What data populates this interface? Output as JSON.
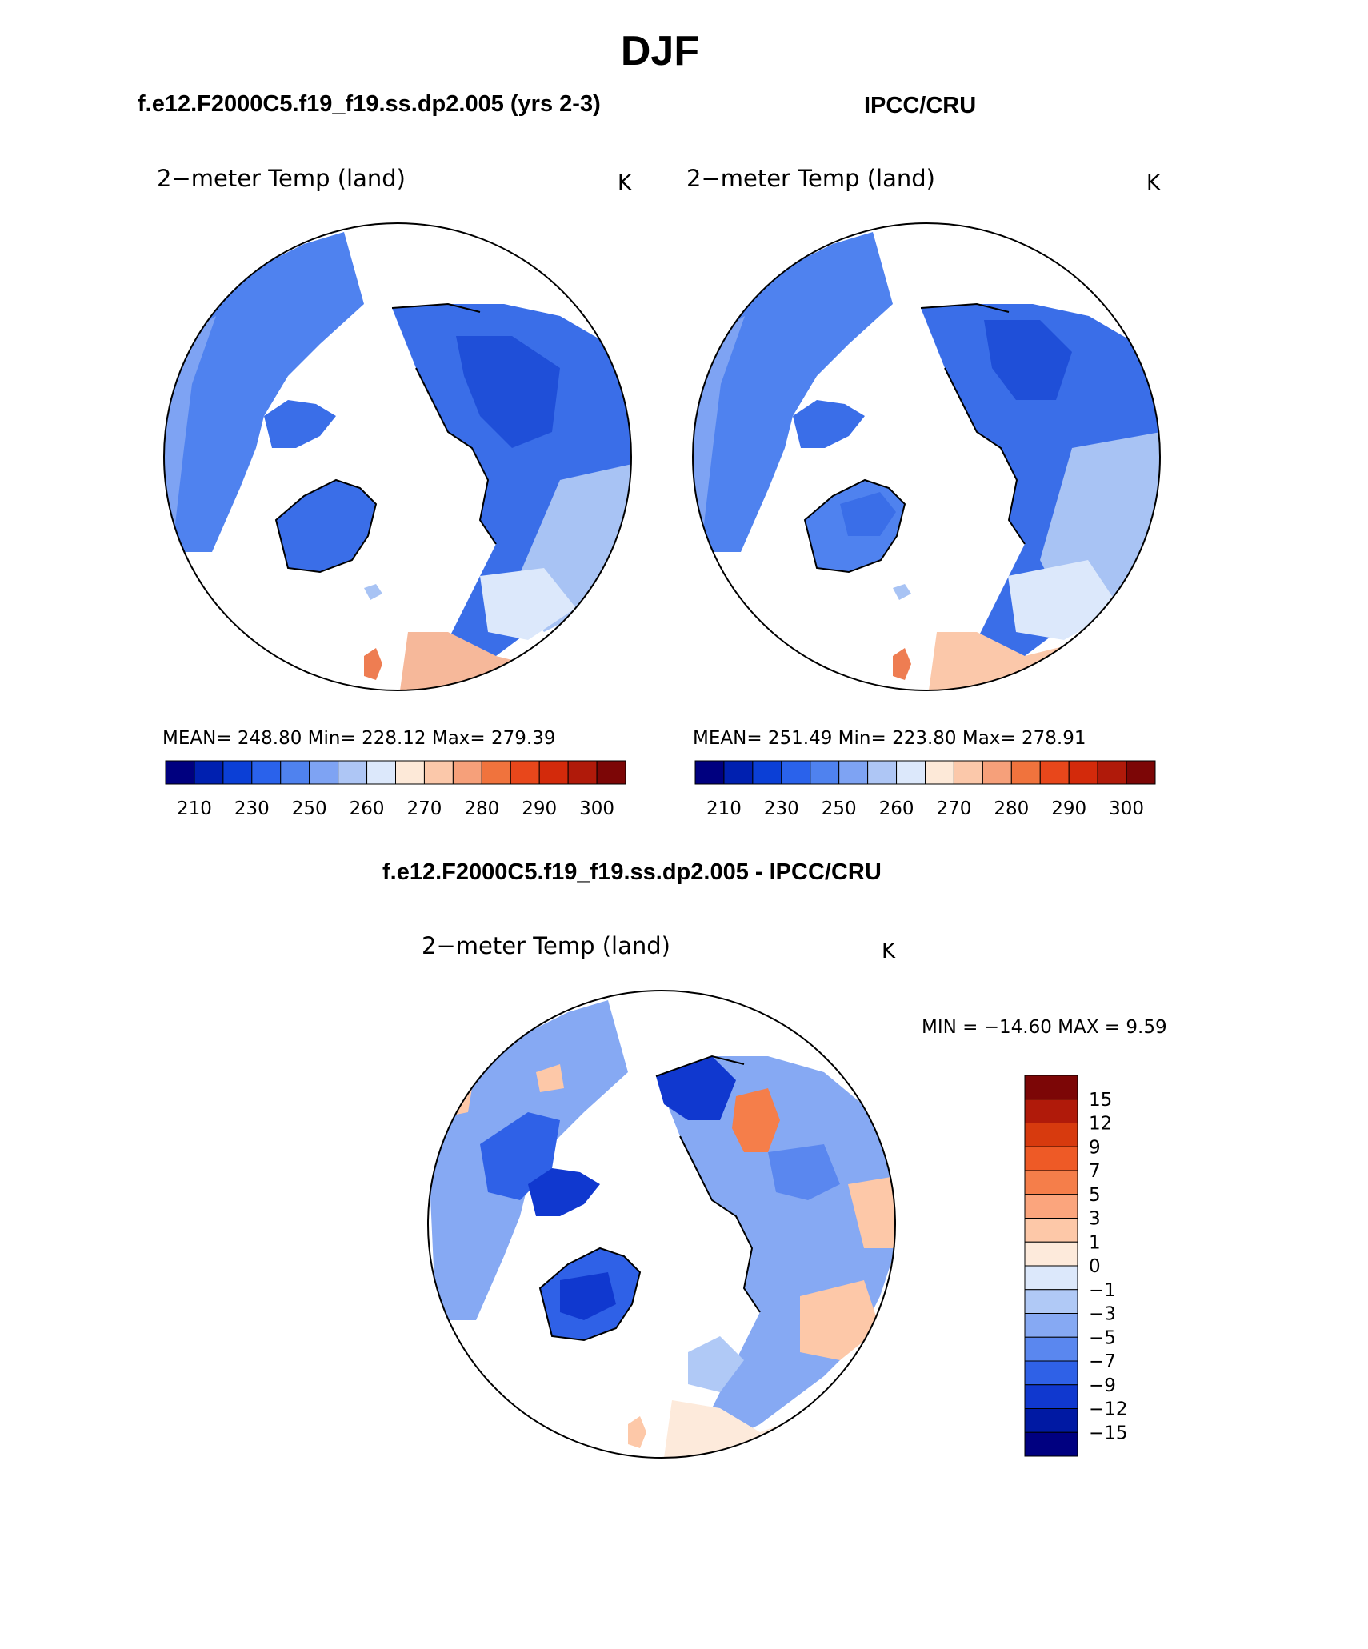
{
  "page": {
    "title": "DJF",
    "panel_left_title": "f.e12.F2000C5.f19_f19.ss.dp2.005 (yrs 2-3)",
    "panel_right_title": "IPCC/CRU",
    "panel_diff_title": "f.e12.F2000C5.f19_f19.ss.dp2.005 - IPCC/CRU"
  },
  "panels": {
    "left": {
      "variable": "2−meter Temp (land)",
      "units": "K",
      "stats": "MEAN=  248.80    Min=  228.12    Max=  279.39"
    },
    "right": {
      "variable": "2−meter Temp (land)",
      "units": "K",
      "stats": "MEAN=  251.49    Min=  223.80    Max=  278.91"
    },
    "diff": {
      "variable": "2−meter Temp (land)",
      "units": "K",
      "stats": "MIN = −14.60  MAX =     9.59"
    }
  },
  "colorbars": {
    "abs": {
      "colors": [
        "#00007f",
        "#0020b0",
        "#0b3fd6",
        "#2a62eb",
        "#4f82ef",
        "#7ea3f3",
        "#aec6f5",
        "#dce8fb",
        "#fde9d8",
        "#fbc8aa",
        "#f6a07a",
        "#f0733d",
        "#e8471b",
        "#d32a0b",
        "#b01a0a",
        "#7c0606"
      ],
      "tick_labels": [
        "210",
        "230",
        "250",
        "260",
        "270",
        "280",
        "290",
        "300"
      ]
    },
    "diff": {
      "colors": [
        "#7c0606",
        "#b01a0a",
        "#d73a0e",
        "#ee5a26",
        "#f57e4a",
        "#fba57d",
        "#fdc8a8",
        "#fdeadb",
        "#dce8fb",
        "#b0c9f6",
        "#86a9f3",
        "#5a87ef",
        "#2f61e7",
        "#1038cf",
        "#0019a3",
        "#000080"
      ],
      "tick_labels": [
        "15",
        "12",
        "9",
        "7",
        "5",
        "3",
        "1",
        "0",
        "−1",
        "−3",
        "−5",
        "−7",
        "−9",
        "−12",
        "−15"
      ]
    }
  },
  "map_colors": {
    "cold_deep": "#1f4fd8",
    "cold": "#3a6ee8",
    "mid": "#6c95ef",
    "cool": "#a8c3f4",
    "pale": "#dce8fb",
    "warm": "#f6b89a",
    "hot": "#ee7d52",
    "red": "#e0521f"
  }
}
